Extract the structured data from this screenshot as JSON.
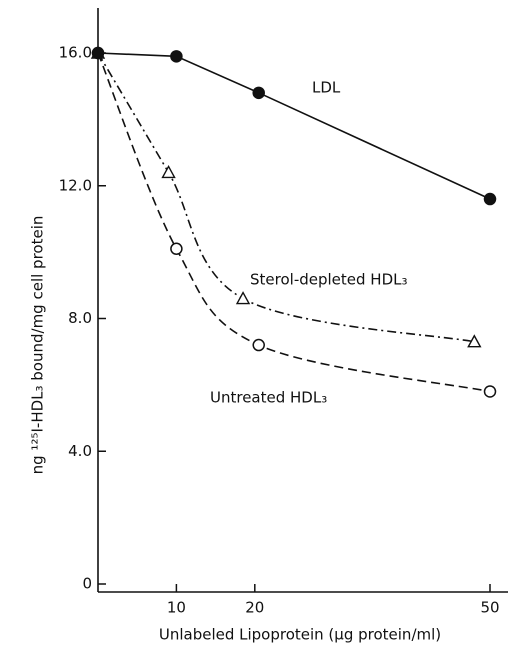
{
  "chart_data": {
    "type": "line",
    "x_label": "Unlabeled Lipoprotein (μg protein/ml)",
    "y_label": "ng ¹²⁵I-HDL₃ bound/mg cell protein",
    "xlim": [
      0,
      50
    ],
    "ylim": [
      0,
      16
    ],
    "xticks": [
      10,
      20,
      50
    ],
    "yticks": [
      0,
      {
        "value": 4,
        "label": "4.0"
      },
      {
        "value": 8,
        "label": "8.0"
      },
      {
        "value": 12,
        "label": "12.0"
      },
      {
        "value": 16,
        "label": "16.0"
      }
    ],
    "series": [
      {
        "name": "Sterol-depleted HDL₃",
        "color": "#111111",
        "marker": "triangle",
        "line": "dashdot",
        "x": [
          0,
          9,
          18.5,
          48
        ],
        "values": [
          16,
          12.4,
          8.6,
          7.3
        ]
      },
      {
        "name": "Untreated HDL₃",
        "color": "#111111",
        "marker": "open-circle",
        "line": "dashed",
        "x": [
          0,
          10,
          20.5,
          50
        ],
        "values": [
          16,
          10.1,
          7.2,
          5.8
        ]
      },
      {
        "name": "LDL",
        "color": "#111111",
        "marker": "filled-circle",
        "line": "solid",
        "x": [
          0,
          10,
          20.5,
          50
        ],
        "values": [
          16,
          15.9,
          14.8,
          11.6
        ]
      }
    ]
  }
}
